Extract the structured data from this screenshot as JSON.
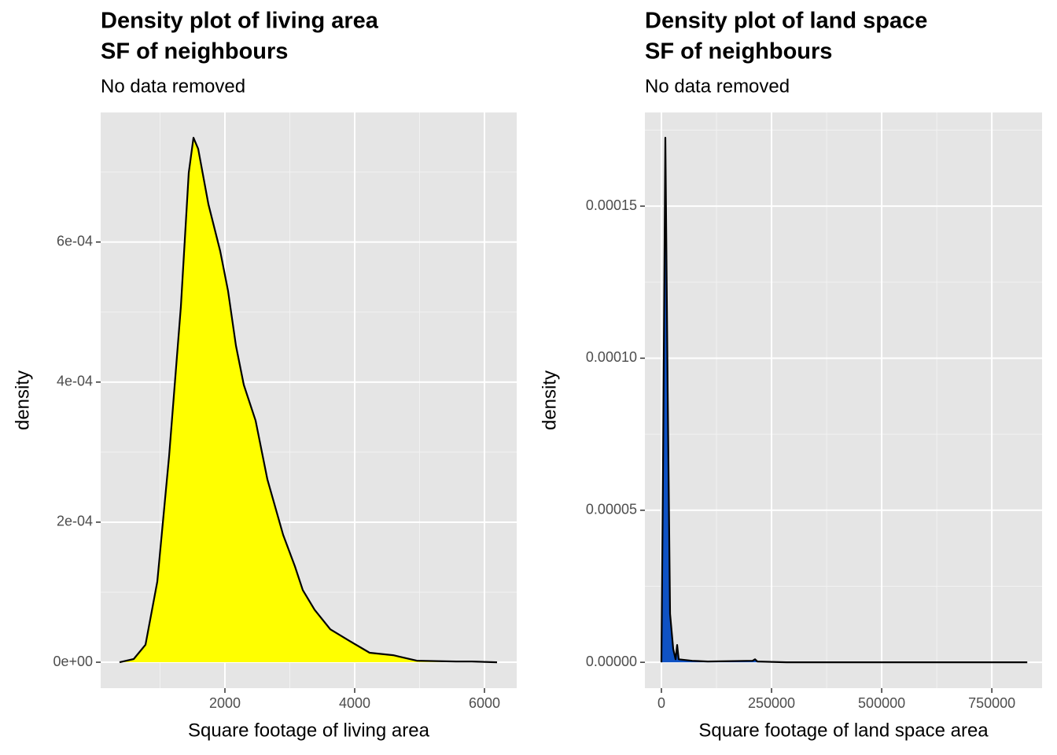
{
  "chart_data": [
    {
      "type": "density",
      "title": [
        "Density plot of living area",
        "SF of neighbours"
      ],
      "subtitle": "No data removed",
      "xlabel": "Square footage of living area",
      "ylabel": "density",
      "fill": "#ffff00",
      "line_color": "#000000",
      "x": [
        376,
        594,
        776,
        958,
        1139,
        1321,
        1442,
        1515,
        1588,
        1745,
        1927,
        2048,
        2170,
        2291,
        2473,
        2655,
        2897,
        3079,
        3200,
        3382,
        3624,
        3927,
        4230,
        4594,
        4958,
        5564,
        5806,
        6194
      ],
      "values": [
        0,
        4.5e-06,
        2.5e-05,
        0.000115,
        0.000294,
        0.000508,
        0.000699,
        0.000749,
        0.000733,
        0.000654,
        0.000587,
        0.00053,
        0.000452,
        0.000396,
        0.000345,
        0.000261,
        0.000182,
        0.000137,
        0.000103,
        7.5e-05,
        4.7e-05,
        3e-05,
        1.35e-05,
        1e-05,
        2.2e-06,
        1.1e-06,
        1.1e-06,
        0
      ],
      "xlim": [
        85,
        6497
      ],
      "ylim": [
        -3.7e-05,
        0.000785
      ],
      "xticks": [
        2000,
        4000,
        6000
      ],
      "yticks": [
        {
          "value": 0,
          "label": "0e+00"
        },
        {
          "value": 0.0002,
          "label": "2e-04"
        },
        {
          "value": 0.0004,
          "label": "4e-04"
        },
        {
          "value": 0.0006,
          "label": "6e-04"
        }
      ],
      "x_minor_ticks": [
        1000,
        3000,
        5000
      ],
      "y_minor_ticks": [
        0.0001,
        0.0003,
        0.0005,
        0.0007
      ],
      "grid": true
    },
    {
      "type": "density",
      "title": [
        "Density plot of land space",
        "SF of neighbours"
      ],
      "subtitle": "No data removed",
      "xlabel": "Square footage of land space area",
      "ylabel": "density",
      "fill": "#0f52c4",
      "line_color": "#000000",
      "x": [
        0,
        3571,
        8929,
        14286,
        19643,
        26786,
        32143,
        35714,
        39286,
        69643,
        105357,
        207143,
        212500,
        217857,
        283929,
        830357
      ],
      "values": [
        0,
        6.26e-05,
        0.0001725,
        8.85e-05,
        1.6e-05,
        4.4e-06,
        1e-06,
        5.7e-06,
        1e-06,
        5e-07,
        2.6e-07,
        5e-07,
        1e-06,
        2.6e-07,
        0,
        0
      ],
      "xlim": [
        -37500,
        864000
      ],
      "ylim": [
        -8.5e-06,
        0.0001808
      ],
      "xticks": [
        0,
        250000,
        500000,
        750000
      ],
      "yticks": [
        {
          "value": 0,
          "label": "0.00000"
        },
        {
          "value": 5e-05,
          "label": "0.00005"
        },
        {
          "value": 0.0001,
          "label": "0.00010"
        },
        {
          "value": 0.00015,
          "label": "0.00015"
        }
      ],
      "x_minor_ticks": [
        125000,
        375000,
        625000
      ],
      "y_minor_ticks": [
        2.5e-05,
        7.5e-05,
        0.000125,
        0.000175
      ],
      "grid": true
    }
  ]
}
